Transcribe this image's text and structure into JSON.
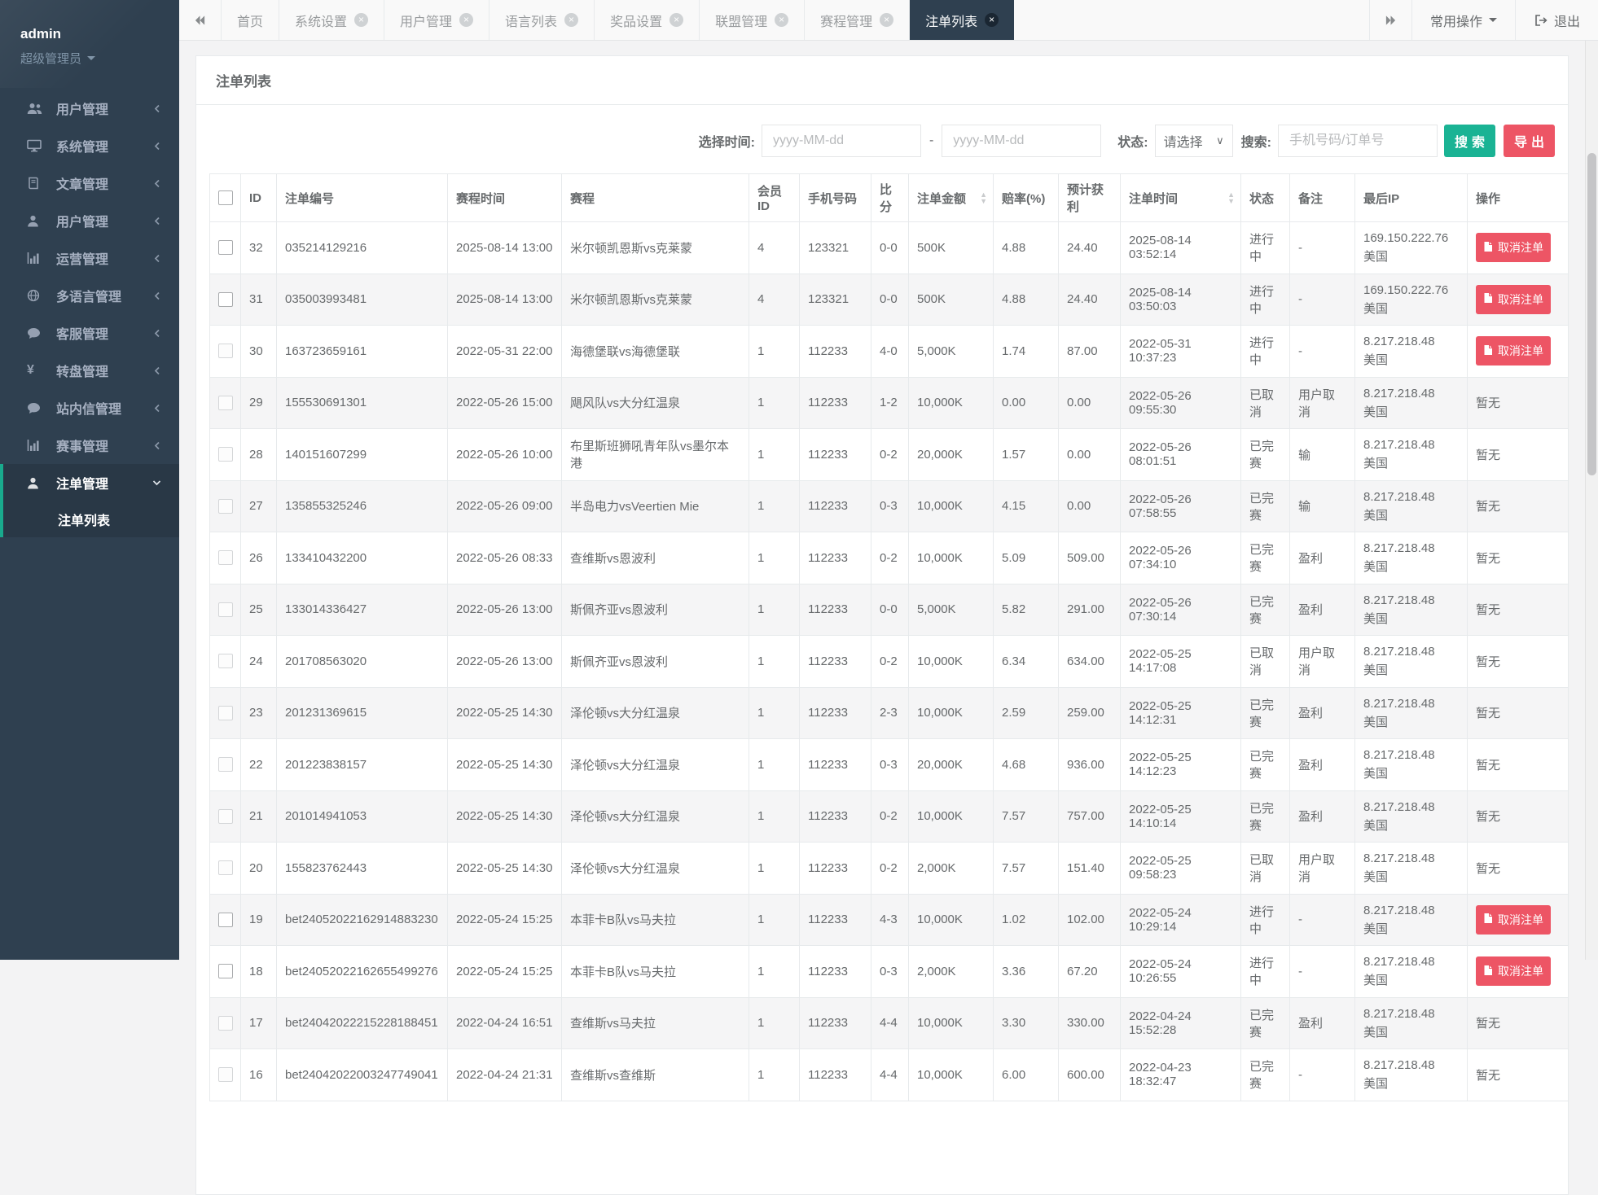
{
  "sidebar": {
    "username": "admin",
    "role": "超级管理员",
    "items": [
      {
        "label": "用户管理",
        "icon": "users-icon"
      },
      {
        "label": "系统管理",
        "icon": "desktop-icon"
      },
      {
        "label": "文章管理",
        "icon": "book-icon"
      },
      {
        "label": "用户管理",
        "icon": "user-icon"
      },
      {
        "label": "运营管理",
        "icon": "bar-chart-icon"
      },
      {
        "label": "多语言管理",
        "icon": "globe-icon"
      },
      {
        "label": "客服管理",
        "icon": "comment-icon"
      },
      {
        "label": "转盘管理",
        "icon": "yen-icon"
      },
      {
        "label": "站内信管理",
        "icon": "comment-icon"
      },
      {
        "label": "赛事管理",
        "icon": "bar-chart-icon"
      },
      {
        "label": "注单管理",
        "icon": "user-icon",
        "active": true
      }
    ],
    "submenu": {
      "label": "注单列表"
    }
  },
  "topbar": {
    "tabs": [
      {
        "label": "首页",
        "closable": false
      },
      {
        "label": "系统设置",
        "closable": true
      },
      {
        "label": "用户管理",
        "closable": true
      },
      {
        "label": "语言列表",
        "closable": true
      },
      {
        "label": "奖品设置",
        "closable": true
      },
      {
        "label": "联盟管理",
        "closable": true
      },
      {
        "label": "赛程管理",
        "closable": true
      },
      {
        "label": "注单列表",
        "closable": true,
        "active": true
      }
    ],
    "actions_label": "常用操作",
    "logout_label": "退出"
  },
  "panel": {
    "title": "注单列表"
  },
  "filters": {
    "time_label": "选择时间:",
    "date_from_placeholder": "yyyy-MM-dd",
    "date_to_placeholder": "yyyy-MM-dd",
    "separator": "-",
    "status_label": "状态:",
    "status_value": "请选择",
    "search_label": "搜索:",
    "search_placeholder": "手机号码/订单号",
    "search_button": "搜索",
    "export_button": "导出"
  },
  "table": {
    "columns": [
      "ID",
      "注单编号",
      "赛程时间",
      "赛程",
      "会员ID",
      "手机号码",
      "比分",
      "注单金额",
      "赔率(%)",
      "预计获利",
      "注单时间",
      "状态",
      "备注",
      "最后IP",
      "操作"
    ],
    "sortable_columns": [
      "注单金额",
      "注单时间"
    ],
    "action_button": "取消注单",
    "no_action": "暂无",
    "rows": [
      {
        "id": "32",
        "bet_no": "035214129216",
        "match_time": "2025-08-14 13:00",
        "match": "米尔顿凯恩斯vs克莱蒙",
        "member_id": "4",
        "phone": "123321",
        "score": "0-0",
        "amount": "500K",
        "odds": "4.88",
        "profit": "24.40",
        "bet_time": "2025-08-14 03:52:14",
        "status": "进行中",
        "remark": "-",
        "ip": "169.150.222.76",
        "region": "美国",
        "action": "cancel",
        "strong_checkbox": true
      },
      {
        "id": "31",
        "bet_no": "035003993481",
        "match_time": "2025-08-14 13:00",
        "match": "米尔顿凯恩斯vs克莱蒙",
        "member_id": "4",
        "phone": "123321",
        "score": "0-0",
        "amount": "500K",
        "odds": "4.88",
        "profit": "24.40",
        "bet_time": "2025-08-14 03:50:03",
        "status": "进行中",
        "remark": "-",
        "ip": "169.150.222.76",
        "region": "美国",
        "action": "cancel",
        "strong_checkbox": true
      },
      {
        "id": "30",
        "bet_no": "163723659161",
        "match_time": "2022-05-31 22:00",
        "match": "海德堡联vs海德堡联",
        "member_id": "1",
        "phone": "112233",
        "score": "4-0",
        "amount": "5,000K",
        "odds": "1.74",
        "profit": "87.00",
        "bet_time": "2022-05-31 10:37:23",
        "status": "进行中",
        "remark": "-",
        "ip": "8.217.218.48",
        "region": "美国",
        "action": "cancel",
        "strong_checkbox": false
      },
      {
        "id": "29",
        "bet_no": "155530691301",
        "match_time": "2022-05-26 15:00",
        "match": "飓风队vs大分红温泉",
        "member_id": "1",
        "phone": "112233",
        "score": "1-2",
        "amount": "10,000K",
        "odds": "0.00",
        "profit": "0.00",
        "bet_time": "2022-05-26 09:55:30",
        "status": "已取消",
        "remark": "用户取消",
        "ip": "8.217.218.48",
        "region": "美国",
        "action": "none",
        "strong_checkbox": false
      },
      {
        "id": "28",
        "bet_no": "140151607299",
        "match_time": "2022-05-26 10:00",
        "match": "布里斯班狮吼青年队vs墨尔本港",
        "member_id": "1",
        "phone": "112233",
        "score": "0-2",
        "amount": "20,000K",
        "odds": "1.57",
        "profit": "0.00",
        "bet_time": "2022-05-26 08:01:51",
        "status": "已完赛",
        "remark": "输",
        "ip": "8.217.218.48",
        "region": "美国",
        "action": "none",
        "strong_checkbox": false
      },
      {
        "id": "27",
        "bet_no": "135855325246",
        "match_time": "2022-05-26 09:00",
        "match": "半岛电力vsVeertien Mie",
        "member_id": "1",
        "phone": "112233",
        "score": "0-3",
        "amount": "10,000K",
        "odds": "4.15",
        "profit": "0.00",
        "bet_time": "2022-05-26 07:58:55",
        "status": "已完赛",
        "remark": "输",
        "ip": "8.217.218.48",
        "region": "美国",
        "action": "none",
        "strong_checkbox": false
      },
      {
        "id": "26",
        "bet_no": "133410432200",
        "match_time": "2022-05-26 08:33",
        "match": "查维斯vs恩波利",
        "member_id": "1",
        "phone": "112233",
        "score": "0-2",
        "amount": "10,000K",
        "odds": "5.09",
        "profit": "509.00",
        "bet_time": "2022-05-26 07:34:10",
        "status": "已完赛",
        "remark": "盈利",
        "ip": "8.217.218.48",
        "region": "美国",
        "action": "none",
        "strong_checkbox": false
      },
      {
        "id": "25",
        "bet_no": "133014336427",
        "match_time": "2022-05-26 13:00",
        "match": "斯佩齐亚vs恩波利",
        "member_id": "1",
        "phone": "112233",
        "score": "0-0",
        "amount": "5,000K",
        "odds": "5.82",
        "profit": "291.00",
        "bet_time": "2022-05-26 07:30:14",
        "status": "已完赛",
        "remark": "盈利",
        "ip": "8.217.218.48",
        "region": "美国",
        "action": "none",
        "strong_checkbox": false
      },
      {
        "id": "24",
        "bet_no": "201708563020",
        "match_time": "2022-05-26 13:00",
        "match": "斯佩齐亚vs恩波利",
        "member_id": "1",
        "phone": "112233",
        "score": "0-2",
        "amount": "10,000K",
        "odds": "6.34",
        "profit": "634.00",
        "bet_time": "2022-05-25 14:17:08",
        "status": "已取消",
        "remark": "用户取消",
        "ip": "8.217.218.48",
        "region": "美国",
        "action": "none",
        "strong_checkbox": false
      },
      {
        "id": "23",
        "bet_no": "201231369615",
        "match_time": "2022-05-25 14:30",
        "match": "泽伦顿vs大分红温泉",
        "member_id": "1",
        "phone": "112233",
        "score": "2-3",
        "amount": "10,000K",
        "odds": "2.59",
        "profit": "259.00",
        "bet_time": "2022-05-25 14:12:31",
        "status": "已完赛",
        "remark": "盈利",
        "ip": "8.217.218.48",
        "region": "美国",
        "action": "none",
        "strong_checkbox": false
      },
      {
        "id": "22",
        "bet_no": "201223838157",
        "match_time": "2022-05-25 14:30",
        "match": "泽伦顿vs大分红温泉",
        "member_id": "1",
        "phone": "112233",
        "score": "0-3",
        "amount": "20,000K",
        "odds": "4.68",
        "profit": "936.00",
        "bet_time": "2022-05-25 14:12:23",
        "status": "已完赛",
        "remark": "盈利",
        "ip": "8.217.218.48",
        "region": "美国",
        "action": "none",
        "strong_checkbox": false
      },
      {
        "id": "21",
        "bet_no": "201014941053",
        "match_time": "2022-05-25 14:30",
        "match": "泽伦顿vs大分红温泉",
        "member_id": "1",
        "phone": "112233",
        "score": "0-2",
        "amount": "10,000K",
        "odds": "7.57",
        "profit": "757.00",
        "bet_time": "2022-05-25 14:10:14",
        "status": "已完赛",
        "remark": "盈利",
        "ip": "8.217.218.48",
        "region": "美国",
        "action": "none",
        "strong_checkbox": false
      },
      {
        "id": "20",
        "bet_no": "155823762443",
        "match_time": "2022-05-25 14:30",
        "match": "泽伦顿vs大分红温泉",
        "member_id": "1",
        "phone": "112233",
        "score": "0-2",
        "amount": "2,000K",
        "odds": "7.57",
        "profit": "151.40",
        "bet_time": "2022-05-25 09:58:23",
        "status": "已取消",
        "remark": "用户取消",
        "ip": "8.217.218.48",
        "region": "美国",
        "action": "none",
        "strong_checkbox": false
      },
      {
        "id": "19",
        "bet_no": "bet24052022162914883230",
        "match_time": "2022-05-24 15:25",
        "match": "本菲卡B队vs马夫拉",
        "member_id": "1",
        "phone": "112233",
        "score": "4-3",
        "amount": "10,000K",
        "odds": "1.02",
        "profit": "102.00",
        "bet_time": "2022-05-24 10:29:14",
        "status": "进行中",
        "remark": "-",
        "ip": "8.217.218.48",
        "region": "美国",
        "action": "cancel",
        "strong_checkbox": true
      },
      {
        "id": "18",
        "bet_no": "bet24052022162655499276",
        "match_time": "2022-05-24 15:25",
        "match": "本菲卡B队vs马夫拉",
        "member_id": "1",
        "phone": "112233",
        "score": "0-3",
        "amount": "2,000K",
        "odds": "3.36",
        "profit": "67.20",
        "bet_time": "2022-05-24 10:26:55",
        "status": "进行中",
        "remark": "-",
        "ip": "8.217.218.48",
        "region": "美国",
        "action": "cancel",
        "strong_checkbox": true
      },
      {
        "id": "17",
        "bet_no": "bet24042022215228188451",
        "match_time": "2022-04-24 16:51",
        "match": "查维斯vs马夫拉",
        "member_id": "1",
        "phone": "112233",
        "score": "4-4",
        "amount": "10,000K",
        "odds": "3.30",
        "profit": "330.00",
        "bet_time": "2022-04-24 15:52:28",
        "status": "已完赛",
        "remark": "盈利",
        "ip": "8.217.218.48",
        "region": "美国",
        "action": "none",
        "strong_checkbox": false
      },
      {
        "id": "16",
        "bet_no": "bet24042022003247749041",
        "match_time": "2022-04-24 21:31",
        "match": "查维斯vs查维斯",
        "member_id": "1",
        "phone": "112233",
        "score": "4-4",
        "amount": "10,000K",
        "odds": "6.00",
        "profit": "600.00",
        "bet_time": "2022-04-23 18:32:47",
        "status": "已完赛",
        "remark": "-",
        "ip": "8.217.218.48",
        "region": "美国",
        "action": "none",
        "strong_checkbox": false
      }
    ]
  }
}
